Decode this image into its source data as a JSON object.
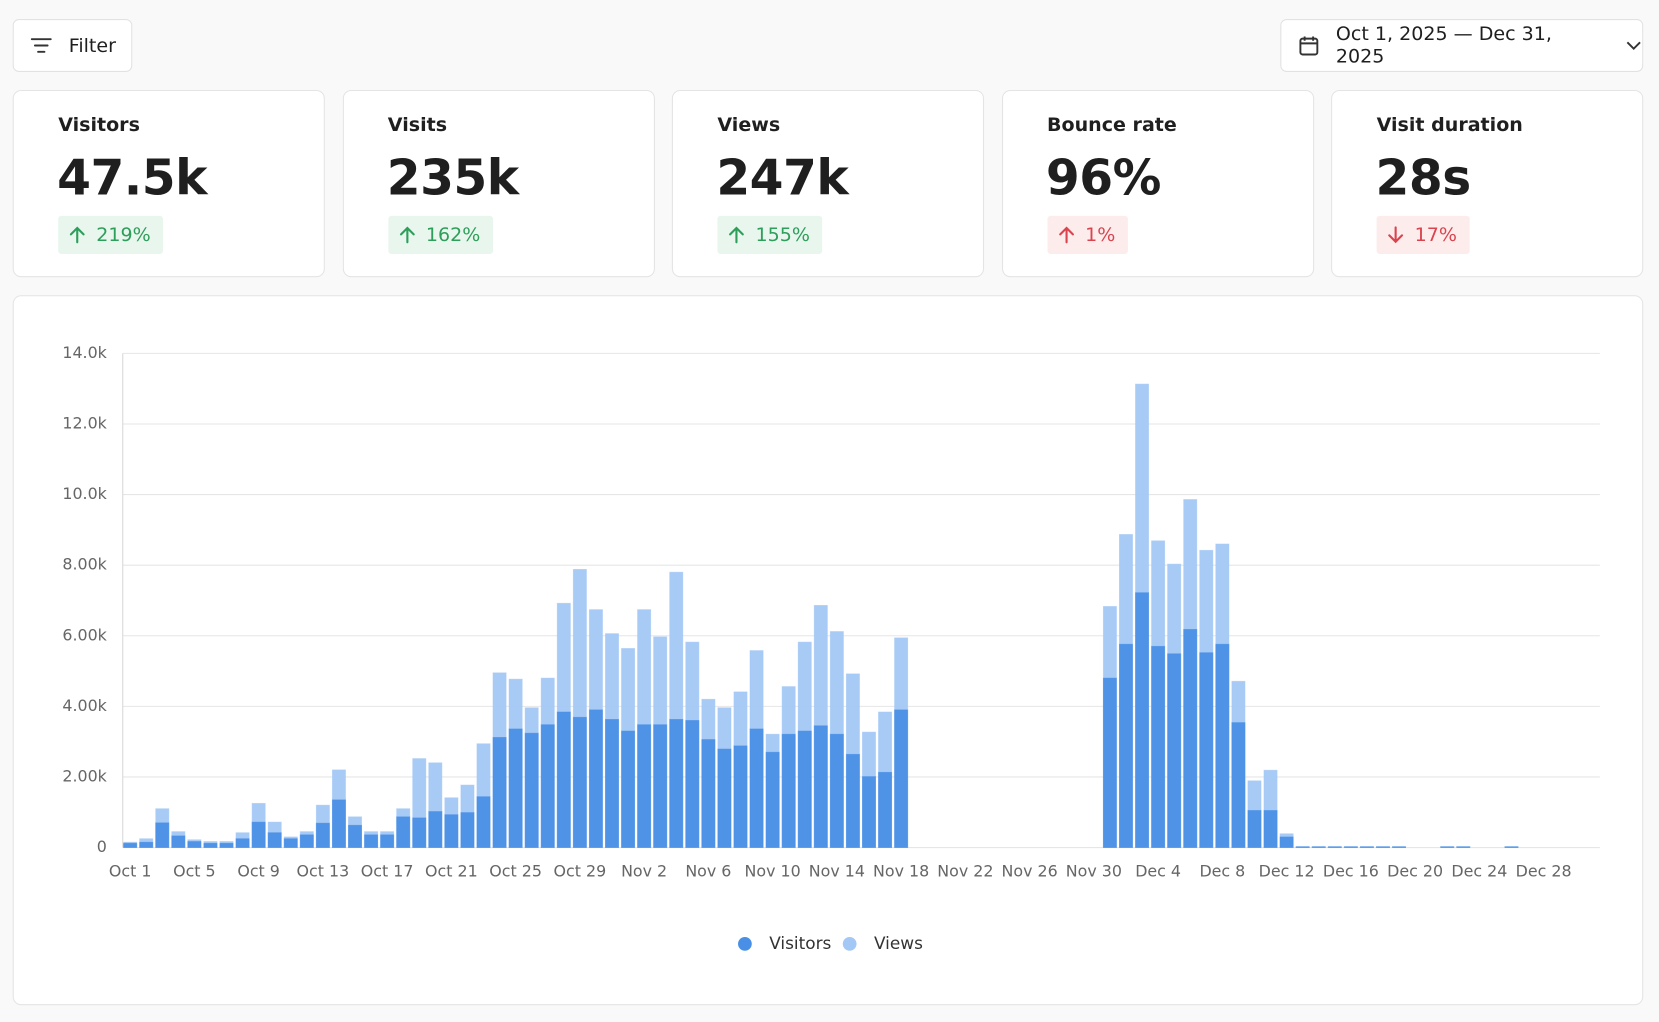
{
  "filter": "Filter",
  "date_range": "Oct 1, 2025 — Dec 31, 2025",
  "stats": [
    {
      "label": "Visitors",
      "value": "47.5k",
      "change": "219%",
      "arrow": "up",
      "color": "#2e9e5b",
      "badge": "#e8f6ee"
    },
    {
      "label": "Visits",
      "value": "235k",
      "change": "162%",
      "arrow": "up",
      "color": "#2e9e5b",
      "badge": "#e8f6ee"
    },
    {
      "label": "Views",
      "value": "247k",
      "change": "155%",
      "arrow": "up",
      "color": "#2e9e5b",
      "badge": "#e8f6ee"
    },
    {
      "label": "Bounce rate",
      "value": "96%",
      "change": "1%",
      "arrow": "up",
      "color": "#d9444f",
      "badge": "#fdecec"
    },
    {
      "label": "Visit duration",
      "value": "28s",
      "change": "17%",
      "arrow": "down",
      "color": "#d9444f",
      "badge": "#fdecec"
    }
  ],
  "chart_data": {
    "type": "bar",
    "grid": true,
    "categories": [
      "Oct 1",
      null,
      null,
      null,
      "Oct 5",
      null,
      null,
      null,
      "Oct 9",
      null,
      null,
      null,
      "Oct 13",
      null,
      null,
      null,
      "Oct 17",
      null,
      null,
      null,
      "Oct 21",
      null,
      null,
      null,
      "Oct 25",
      null,
      null,
      null,
      "Oct 29",
      null,
      null,
      null,
      "Nov 2",
      null,
      null,
      null,
      "Nov 6",
      null,
      null,
      null,
      "Nov 10",
      null,
      null,
      null,
      "Nov 14",
      null,
      null,
      null,
      "Nov 18",
      null,
      null,
      null,
      "Nov 22",
      null,
      null,
      null,
      "Nov 26",
      null,
      null,
      null,
      "Nov 30",
      null,
      null,
      null,
      "Dec 4",
      null,
      null,
      null,
      "Dec 8",
      null,
      null,
      null,
      "Dec 12",
      null,
      null,
      null,
      "Dec 16",
      null,
      null,
      null,
      "Dec 20",
      null,
      null,
      null,
      "Dec 24",
      null,
      null,
      null,
      "Dec 28",
      null,
      null,
      null
    ],
    "series": [
      {
        "name": "Visitors",
        "color": "#4a8fe6",
        "values": [
          120,
          150,
          700,
          330,
          170,
          120,
          120,
          250,
          720,
          420,
          250,
          360,
          690,
          1350,
          630,
          360,
          360,
          870,
          840,
          1020,
          930,
          990,
          1440,
          3120,
          3360,
          3240,
          3480,
          3840,
          3690,
          3900,
          3630,
          3300,
          3480,
          3480,
          3630,
          3600,
          3060,
          2790,
          2880,
          3360,
          2700,
          3210,
          3300,
          3450,
          3210,
          2640,
          2010,
          2130,
          3900,
          0,
          0,
          0,
          0,
          0,
          0,
          0,
          0,
          0,
          0,
          0,
          0,
          4800,
          5760,
          7220,
          5700,
          5490,
          6180,
          5520,
          5760,
          3540,
          1050,
          1050,
          300,
          20,
          20,
          20,
          20,
          20,
          20,
          20,
          0,
          0,
          20,
          20,
          0,
          0,
          20,
          0,
          0,
          0,
          0,
          0
        ]
      },
      {
        "name": "Views",
        "color": "#a3c8f5",
        "values": [
          150,
          250,
          1100,
          450,
          220,
          170,
          170,
          420,
          1250,
          720,
          300,
          450,
          1200,
          2200,
          870,
          450,
          450,
          1100,
          2520,
          2400,
          1410,
          1770,
          2940,
          4950,
          4770,
          3960,
          4800,
          6920,
          7880,
          6740,
          6060,
          5640,
          6740,
          5970,
          7800,
          5820,
          4200,
          3960,
          4410,
          5580,
          3210,
          4560,
          5820,
          6860,
          6120,
          4920,
          3270,
          3840,
          5940,
          0,
          0,
          0,
          0,
          0,
          0,
          0,
          0,
          0,
          0,
          0,
          0,
          6830,
          8870,
          13130,
          8690,
          8030,
          9860,
          8420,
          8600,
          4710,
          1890,
          2190,
          390,
          30,
          30,
          30,
          30,
          30,
          30,
          30,
          0,
          0,
          30,
          30,
          0,
          0,
          30,
          0,
          0,
          0,
          0,
          0
        ]
      }
    ],
    "ylim": [
      0,
      14000
    ],
    "yticks": [
      0,
      {
        "value": 2000,
        "label": "2.00k"
      },
      {
        "value": 4000,
        "label": "4.00k"
      },
      {
        "value": 6000,
        "label": "6.00k"
      },
      {
        "value": 8000,
        "label": "8.00k"
      },
      {
        "value": 10000,
        "label": "10.0k"
      },
      {
        "value": 12000,
        "label": "12.0k"
      },
      {
        "value": 14000,
        "label": "14.0k"
      }
    ]
  }
}
